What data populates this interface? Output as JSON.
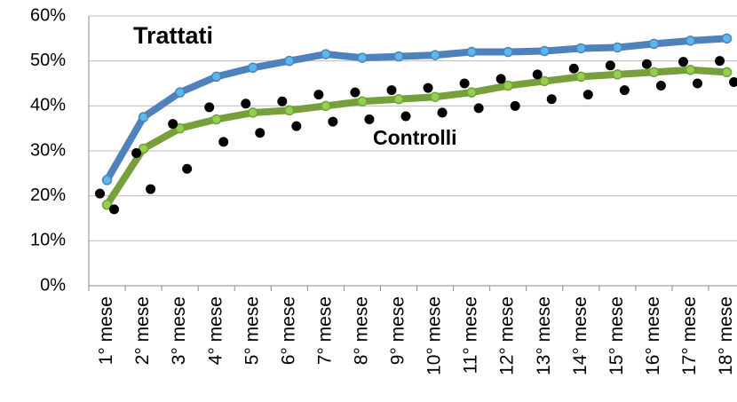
{
  "chart_data": {
    "type": "line",
    "annotations": [
      "Trattati",
      "Controlli"
    ],
    "categories": [
      "1° mese",
      "2° mese",
      "3° mese",
      "4° mese",
      "5° mese",
      "6° mese",
      "7° mese",
      "8° mese",
      "9° mese",
      "10° mese",
      "11° mese",
      "12° mese",
      "13° mese",
      "14° mese",
      "15° mese",
      "16° mese",
      "17° mese",
      "18° mese"
    ],
    "series": [
      {
        "name": "Trattati",
        "color": "#4f81bd",
        "marker_color": "#5bb8ea",
        "values": [
          23.5,
          37.5,
          43,
          46.5,
          48.5,
          50,
          51.5,
          50.7,
          51,
          51.3,
          52,
          52,
          52.2,
          52.8,
          53,
          53.8,
          54.5,
          55
        ]
      },
      {
        "name": "Controlli",
        "color": "#77a03c",
        "marker_color": "#92d050",
        "values": [
          18,
          30.5,
          35,
          37,
          38.5,
          39,
          40,
          41,
          41.5,
          42,
          43,
          44.5,
          45.5,
          46.5,
          47,
          47.5,
          48,
          47.5
        ]
      },
      {
        "color": "#000000",
        "style": "dots",
        "values": [
          20.5,
          29.5,
          36,
          39.7,
          40.5,
          41,
          42.5,
          43,
          43.5,
          44,
          45,
          46,
          47,
          48.3,
          49,
          49.3,
          49.8,
          50
        ]
      },
      {
        "color": "#000000",
        "style": "dots",
        "values": [
          17,
          21.5,
          26,
          32,
          34,
          35.5,
          36.5,
          37,
          37.7,
          38.5,
          39.5,
          40,
          41.5,
          42.5,
          43.5,
          44.5,
          45,
          45.3
        ]
      }
    ],
    "ylim": [
      0,
      60
    ],
    "yticks": [
      {
        "value": 0,
        "label": "0%"
      },
      {
        "value": 10,
        "label": "10%"
      },
      {
        "value": 20,
        "label": "20%"
      },
      {
        "value": 30,
        "label": "30%"
      },
      {
        "value": 40,
        "label": "40%"
      },
      {
        "value": 50,
        "label": "50%"
      },
      {
        "value": 60,
        "label": "60%"
      }
    ],
    "grid": true
  }
}
